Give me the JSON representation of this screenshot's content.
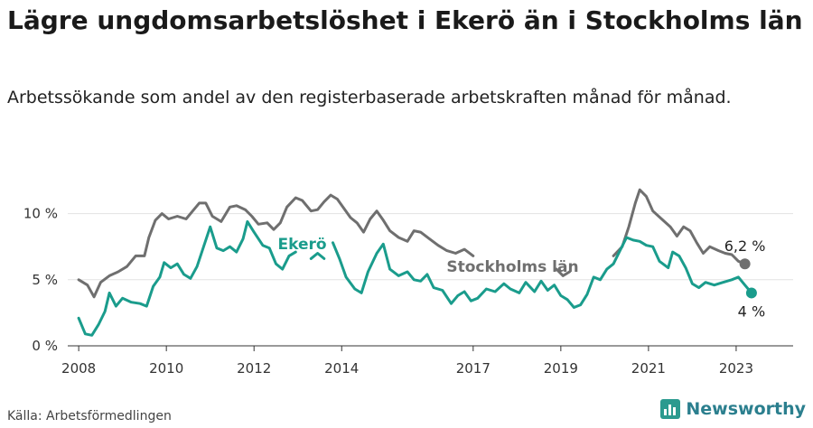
{
  "title": "Lägre ungdomsarbetslöshet i Ekerö än i Stockholms län",
  "subtitle": "Arbetssökande som andel av den registerbaserade arbetskraften månad för månad.",
  "source": "Källa: Arbetsförmedlingen",
  "brand": "Newsworthy",
  "chart_data": {
    "type": "line",
    "ylim": [
      0,
      12.5
    ],
    "xlim": [
      2007.75,
      2024.3
    ],
    "y_ticks": [
      0,
      5,
      10
    ],
    "y_tick_labels": [
      "0 %",
      "5 %",
      "10 %"
    ],
    "x_ticks": [
      2008,
      2010,
      2012,
      2014,
      2017,
      2019,
      2021,
      2023
    ],
    "x_tick_labels": [
      "2008",
      "2010",
      "2012",
      "2014",
      "2017",
      "2019",
      "2021",
      "2023"
    ],
    "series": [
      {
        "name": "Stockholms län",
        "color": "#6f6f6f",
        "end_label": "6,2 %",
        "points": [
          [
            2008.0,
            5.0
          ],
          [
            2008.2,
            4.6
          ],
          [
            2008.35,
            3.7
          ],
          [
            2008.5,
            4.8
          ],
          [
            2008.7,
            5.3
          ],
          [
            2008.9,
            5.6
          ],
          [
            2009.1,
            6.0
          ],
          [
            2009.3,
            6.8
          ],
          [
            2009.5,
            6.8
          ],
          [
            2009.6,
            8.2
          ],
          [
            2009.75,
            9.5
          ],
          [
            2009.9,
            10.0
          ],
          [
            2010.05,
            9.6
          ],
          [
            2010.25,
            9.8
          ],
          [
            2010.45,
            9.6
          ],
          [
            2010.6,
            10.2
          ],
          [
            2010.75,
            10.8
          ],
          [
            2010.9,
            10.8
          ],
          [
            2011.05,
            9.8
          ],
          [
            2011.25,
            9.4
          ],
          [
            2011.45,
            10.5
          ],
          [
            2011.6,
            10.6
          ],
          [
            2011.8,
            10.3
          ],
          [
            2011.95,
            9.8
          ],
          [
            2012.1,
            9.2
          ],
          [
            2012.3,
            9.3
          ],
          [
            2012.45,
            8.8
          ],
          [
            2012.6,
            9.3
          ],
          [
            2012.75,
            10.5
          ],
          [
            2012.95,
            11.2
          ],
          [
            2013.1,
            11.0
          ],
          [
            2013.3,
            10.2
          ],
          [
            2013.45,
            10.3
          ],
          [
            2013.6,
            10.9
          ],
          [
            2013.75,
            11.4
          ],
          [
            2013.9,
            11.1
          ],
          [
            2014.05,
            10.4
          ],
          [
            2014.2,
            9.7
          ],
          [
            2014.35,
            9.3
          ],
          [
            2014.5,
            8.6
          ],
          [
            2014.65,
            9.6
          ],
          [
            2014.8,
            10.2
          ],
          [
            2014.95,
            9.5
          ],
          [
            2015.1,
            8.7
          ],
          [
            2015.3,
            8.2
          ],
          [
            2015.5,
            7.9
          ],
          [
            2015.65,
            8.7
          ],
          [
            2015.8,
            8.6
          ],
          [
            2016.0,
            8.1
          ],
          [
            2016.2,
            7.6
          ],
          [
            2016.4,
            7.2
          ],
          [
            2016.6,
            7.0
          ],
          [
            2016.8,
            7.3
          ],
          [
            2017.0,
            6.8
          ]
        ],
        "segments2": [
          [
            2018.9,
            5.8
          ],
          [
            2019.05,
            5.3
          ],
          [
            2019.2,
            5.6
          ]
        ],
        "segments3": [
          [
            2020.2,
            6.8
          ],
          [
            2020.4,
            7.5
          ],
          [
            2020.55,
            9.0
          ],
          [
            2020.7,
            10.8
          ],
          [
            2020.8,
            11.8
          ],
          [
            2020.95,
            11.3
          ],
          [
            2021.1,
            10.2
          ],
          [
            2021.3,
            9.6
          ],
          [
            2021.5,
            9.0
          ],
          [
            2021.65,
            8.3
          ],
          [
            2021.8,
            9.0
          ],
          [
            2021.95,
            8.7
          ],
          [
            2022.1,
            7.8
          ],
          [
            2022.25,
            7.0
          ],
          [
            2022.4,
            7.5
          ],
          [
            2022.6,
            7.2
          ],
          [
            2022.75,
            7.0
          ],
          [
            2022.9,
            6.9
          ],
          [
            2023.05,
            6.4
          ],
          [
            2023.2,
            6.2
          ]
        ]
      },
      {
        "name": "Ekerö",
        "color": "#1a9c8c",
        "end_label": "4 %",
        "points": [
          [
            2008.0,
            2.1
          ],
          [
            2008.15,
            0.9
          ],
          [
            2008.3,
            0.8
          ],
          [
            2008.45,
            1.6
          ],
          [
            2008.6,
            2.6
          ],
          [
            2008.7,
            4.0
          ],
          [
            2008.85,
            3.0
          ],
          [
            2009.0,
            3.6
          ],
          [
            2009.2,
            3.3
          ],
          [
            2009.4,
            3.2
          ],
          [
            2009.55,
            3.0
          ],
          [
            2009.7,
            4.5
          ],
          [
            2009.85,
            5.2
          ],
          [
            2009.95,
            6.3
          ],
          [
            2010.1,
            5.9
          ],
          [
            2010.25,
            6.2
          ],
          [
            2010.4,
            5.4
          ],
          [
            2010.55,
            5.1
          ],
          [
            2010.7,
            6.0
          ],
          [
            2010.85,
            7.5
          ],
          [
            2011.0,
            9.0
          ],
          [
            2011.15,
            7.4
          ],
          [
            2011.3,
            7.2
          ],
          [
            2011.45,
            7.5
          ],
          [
            2011.6,
            7.1
          ],
          [
            2011.75,
            8.1
          ],
          [
            2011.85,
            9.4
          ],
          [
            2012.0,
            8.6
          ],
          [
            2012.2,
            7.6
          ],
          [
            2012.35,
            7.4
          ],
          [
            2012.5,
            6.2
          ],
          [
            2012.65,
            5.8
          ],
          [
            2012.8,
            6.8
          ],
          [
            2012.95,
            7.1
          ]
        ],
        "segments2": [
          [
            2013.3,
            6.6
          ],
          [
            2013.45,
            7.0
          ],
          [
            2013.6,
            6.6
          ]
        ],
        "segments3": [
          [
            2013.8,
            7.8
          ],
          [
            2013.95,
            6.6
          ],
          [
            2014.1,
            5.2
          ],
          [
            2014.3,
            4.3
          ],
          [
            2014.45,
            4.0
          ],
          [
            2014.6,
            5.6
          ],
          [
            2014.8,
            7.0
          ],
          [
            2014.95,
            7.7
          ],
          [
            2015.1,
            5.8
          ],
          [
            2015.3,
            5.3
          ],
          [
            2015.5,
            5.6
          ],
          [
            2015.65,
            5.0
          ],
          [
            2015.8,
            4.9
          ],
          [
            2015.95,
            5.4
          ],
          [
            2016.1,
            4.4
          ],
          [
            2016.3,
            4.2
          ],
          [
            2016.5,
            3.2
          ],
          [
            2016.65,
            3.8
          ],
          [
            2016.8,
            4.1
          ],
          [
            2016.95,
            3.4
          ],
          [
            2017.1,
            3.6
          ],
          [
            2017.3,
            4.3
          ],
          [
            2017.5,
            4.1
          ],
          [
            2017.7,
            4.7
          ],
          [
            2017.85,
            4.3
          ],
          [
            2018.05,
            4.0
          ],
          [
            2018.2,
            4.8
          ],
          [
            2018.4,
            4.1
          ],
          [
            2018.55,
            4.9
          ],
          [
            2018.7,
            4.2
          ],
          [
            2018.85,
            4.6
          ],
          [
            2019.0,
            3.8
          ],
          [
            2019.15,
            3.5
          ],
          [
            2019.3,
            2.9
          ],
          [
            2019.45,
            3.1
          ],
          [
            2019.6,
            3.9
          ],
          [
            2019.75,
            5.2
          ],
          [
            2019.9,
            5.0
          ],
          [
            2020.05,
            5.8
          ],
          [
            2020.2,
            6.2
          ],
          [
            2020.35,
            7.2
          ],
          [
            2020.5,
            8.2
          ],
          [
            2020.65,
            8.0
          ],
          [
            2020.8,
            7.9
          ],
          [
            2020.95,
            7.6
          ],
          [
            2021.1,
            7.5
          ],
          [
            2021.25,
            6.4
          ],
          [
            2021.45,
            5.9
          ],
          [
            2021.55,
            7.1
          ],
          [
            2021.7,
            6.8
          ],
          [
            2021.85,
            5.9
          ],
          [
            2022.0,
            4.7
          ],
          [
            2022.15,
            4.4
          ],
          [
            2022.3,
            4.8
          ],
          [
            2022.5,
            4.6
          ],
          [
            2022.7,
            4.8
          ],
          [
            2022.9,
            5.0
          ],
          [
            2023.05,
            5.2
          ],
          [
            2023.2,
            4.6
          ],
          [
            2023.35,
            4.0
          ]
        ]
      }
    ],
    "annotations": [
      {
        "text": "Ekerö",
        "series": "Ekerö"
      },
      {
        "text": "Stockholms län",
        "series": "Stockholms län"
      }
    ]
  }
}
